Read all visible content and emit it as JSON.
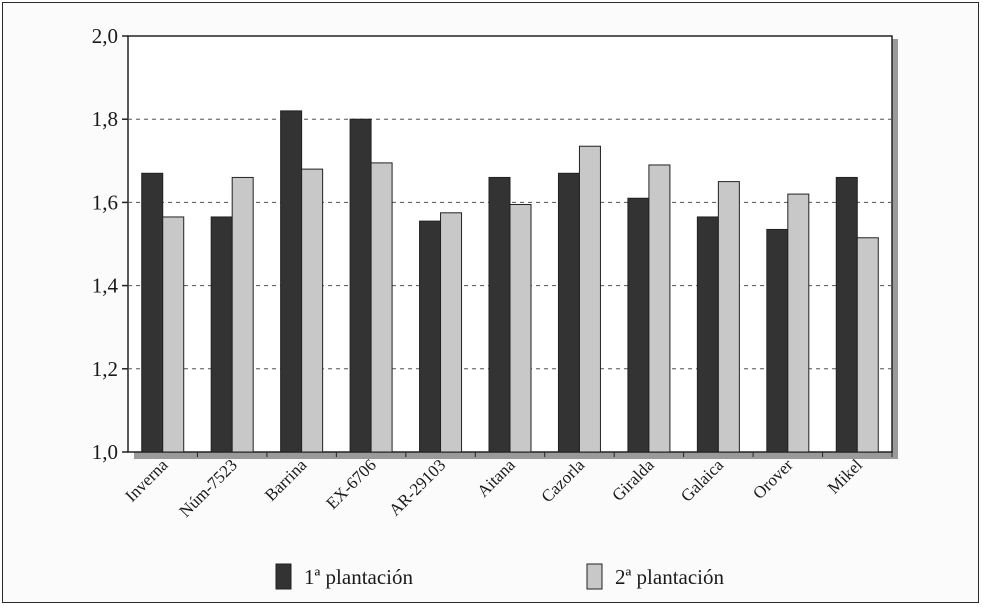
{
  "chart_data": {
    "type": "bar",
    "categories": [
      "Inverna",
      "Núm-7523",
      "Barrina",
      "EX-6706",
      "AR-29103",
      "Aitana",
      "Cazorla",
      "Giralda",
      "Galaica",
      "Orover",
      "Mikel"
    ],
    "series": [
      {
        "name": "1ª plantación",
        "values": [
          1.67,
          1.565,
          1.82,
          1.8,
          1.555,
          1.66,
          1.67,
          1.61,
          1.565,
          1.535,
          1.66
        ]
      },
      {
        "name": "2ª plantación",
        "values": [
          1.565,
          1.66,
          1.68,
          1.695,
          1.575,
          1.595,
          1.735,
          1.69,
          1.65,
          1.62,
          1.515
        ]
      }
    ],
    "ylim": [
      1.0,
      2.0
    ],
    "yticks": [
      "1,0",
      "1,2",
      "1,4",
      "1,6",
      "1,8",
      "2,0"
    ],
    "ytick_values": [
      1.0,
      1.2,
      1.4,
      1.6,
      1.8,
      2.0
    ],
    "grid": true,
    "legend_position": "bottom",
    "colors": {
      "series1": "#333333",
      "series2": "#c8c8c8"
    }
  }
}
